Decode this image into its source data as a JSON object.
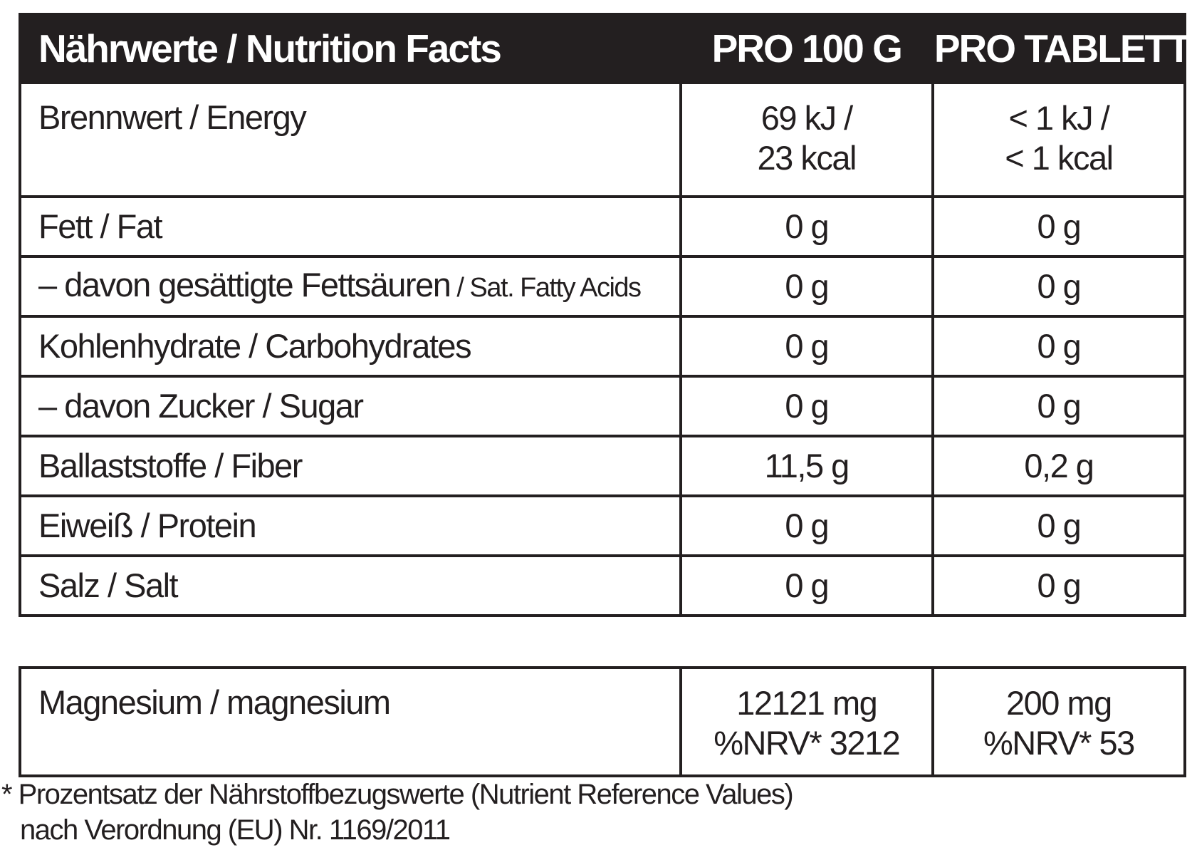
{
  "table": {
    "header": {
      "label": "Nährwerte / Nutrition Facts",
      "per_100g": "PRO 100 G",
      "per_tablet": "PRO TABLETTE"
    },
    "rows": [
      {
        "de": "Brennwert",
        "en": " / Energy",
        "per_100g_line1": "69 kJ /",
        "per_100g_line2": "23 kcal",
        "per_tablet_line1": "< 1 kJ /",
        "per_tablet_line2": "< 1 kcal"
      },
      {
        "de": "Fett",
        "en": " / Fat",
        "per_100g": "0 g",
        "per_tablet": "0 g"
      },
      {
        "de": "– davon gesättigte Fettsäuren",
        "en": " / Sat. Fatty Acids",
        "per_100g": "0 g",
        "per_tablet": "0 g"
      },
      {
        "de": "Kohlenhydrate",
        "en": " / Carbohydrates",
        "per_100g": "0 g",
        "per_tablet": "0 g"
      },
      {
        "de": "– davon Zucker",
        "en": " / Sugar",
        "per_100g": "0 g",
        "per_tablet": "0 g"
      },
      {
        "de": "Ballaststoffe",
        "en": " / Fiber",
        "per_100g": "11,5 g",
        "per_tablet": "0,2 g"
      },
      {
        "de": "Eiweiß",
        "en": " / Protein",
        "per_100g": "0 g",
        "per_tablet": "0 g"
      },
      {
        "de": "Salz",
        "en": " / Salt",
        "per_100g": "0 g",
        "per_tablet": "0 g"
      }
    ]
  },
  "minerals": {
    "rows": [
      {
        "de": "Magnesium",
        "en": " / magnesium",
        "per_100g_line1": "12121 mg",
        "per_100g_line2": "%NRV* 3212",
        "per_tablet_line1": "200 mg",
        "per_tablet_line2": "%NRV* 53"
      }
    ]
  },
  "footnote": {
    "line1": "* Prozentsatz der Nährstoffbezugswerte (Nutrient Reference Values)",
    "line2": "nach Verordnung (EU) Nr. 1169/2011"
  }
}
